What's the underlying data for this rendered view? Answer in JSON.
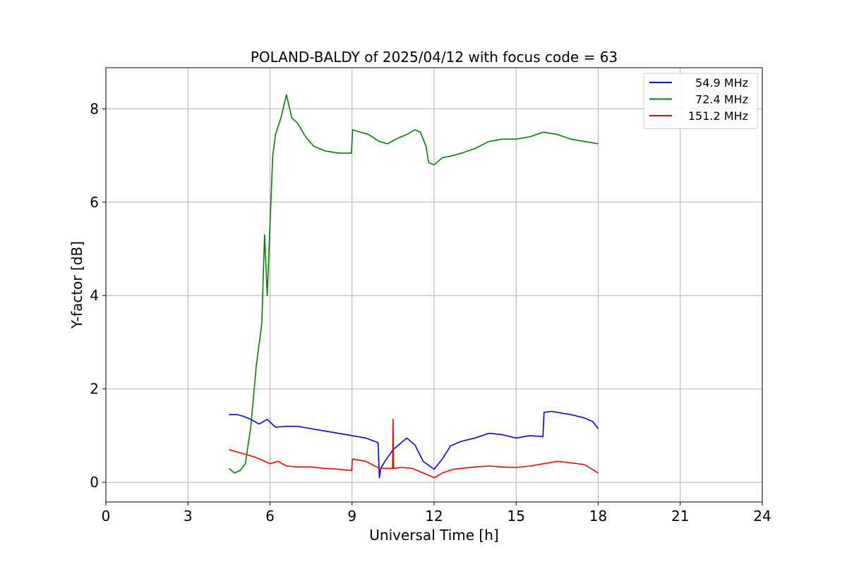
{
  "chart_data": {
    "type": "line",
    "title": "POLAND-BALDY of 2025/04/12 with focus code = 63",
    "xlabel": "Universal Time [h]",
    "ylabel": "Y-factor [dB]",
    "xlim": [
      0,
      24
    ],
    "ylim": [
      -0.42,
      8.88
    ],
    "xticks": [
      0,
      3,
      6,
      9,
      12,
      15,
      18,
      21,
      24
    ],
    "yticks": [
      0,
      2,
      4,
      6,
      8
    ],
    "grid": true,
    "legend_position": "top-right",
    "series": [
      {
        "name": "54.9 MHz",
        "color": "#0000ff",
        "x": [
          4.5,
          4.8,
          5.0,
          5.3,
          5.6,
          5.9,
          6.2,
          6.6,
          7.0,
          7.5,
          8.0,
          8.5,
          9.0,
          9.5,
          9.95,
          10.0,
          10.05,
          10.2,
          10.5,
          10.8,
          11.0,
          11.3,
          11.6,
          12.0,
          12.3,
          12.6,
          13.0,
          13.5,
          14.0,
          14.5,
          15.0,
          15.5,
          15.98,
          16.02,
          16.3,
          16.7,
          17.0,
          17.5,
          17.8,
          18.0
        ],
        "y": [
          1.45,
          1.45,
          1.42,
          1.35,
          1.25,
          1.35,
          1.18,
          1.2,
          1.2,
          1.15,
          1.1,
          1.05,
          1.0,
          0.95,
          0.85,
          0.1,
          0.3,
          0.45,
          0.7,
          0.85,
          0.95,
          0.8,
          0.45,
          0.28,
          0.5,
          0.78,
          0.88,
          0.95,
          1.05,
          1.02,
          0.95,
          1.0,
          0.98,
          1.5,
          1.52,
          1.48,
          1.45,
          1.38,
          1.3,
          1.15
        ]
      },
      {
        "name": "72.4 MHz",
        "color": "#008000",
        "x": [
          4.5,
          4.7,
          4.9,
          5.1,
          5.3,
          5.5,
          5.7,
          5.8,
          5.9,
          6.0,
          6.1,
          6.2,
          6.4,
          6.6,
          6.8,
          7.0,
          7.3,
          7.6,
          8.0,
          8.5,
          8.98,
          9.02,
          9.3,
          9.6,
          10.0,
          10.3,
          10.6,
          10.8,
          11.0,
          11.3,
          11.5,
          11.7,
          11.8,
          12.0,
          12.3,
          12.7,
          13.0,
          13.5,
          14.0,
          14.5,
          15.0,
          15.5,
          16.0,
          16.5,
          17.0,
          17.5,
          18.0
        ],
        "y": [
          0.3,
          0.2,
          0.25,
          0.4,
          1.2,
          2.5,
          3.4,
          5.3,
          4.0,
          5.5,
          7.0,
          7.45,
          7.8,
          8.3,
          7.8,
          7.7,
          7.4,
          7.2,
          7.1,
          7.05,
          7.05,
          7.55,
          7.5,
          7.45,
          7.3,
          7.25,
          7.35,
          7.4,
          7.45,
          7.55,
          7.5,
          7.2,
          6.85,
          6.8,
          6.95,
          7.0,
          7.05,
          7.15,
          7.3,
          7.35,
          7.35,
          7.4,
          7.5,
          7.45,
          7.35,
          7.3,
          7.25
        ]
      },
      {
        "name": "151.2 MHz",
        "color": "#ff0000",
        "x": [
          4.5,
          4.8,
          5.1,
          5.4,
          5.7,
          6.0,
          6.3,
          6.6,
          7.0,
          7.5,
          8.0,
          8.5,
          8.98,
          9.02,
          9.5,
          10.0,
          10.3,
          10.48,
          10.5,
          10.52,
          10.8,
          11.2,
          11.6,
          12.0,
          12.3,
          12.7,
          13.0,
          13.5,
          14.0,
          14.5,
          15.0,
          15.5,
          16.0,
          16.5,
          17.0,
          17.5,
          18.0
        ],
        "y": [
          0.7,
          0.65,
          0.6,
          0.55,
          0.48,
          0.4,
          0.45,
          0.35,
          0.33,
          0.33,
          0.3,
          0.28,
          0.25,
          0.5,
          0.45,
          0.3,
          0.3,
          0.3,
          1.35,
          0.3,
          0.32,
          0.3,
          0.2,
          0.1,
          0.2,
          0.28,
          0.3,
          0.33,
          0.35,
          0.33,
          0.32,
          0.35,
          0.4,
          0.45,
          0.42,
          0.38,
          0.2
        ]
      }
    ]
  }
}
